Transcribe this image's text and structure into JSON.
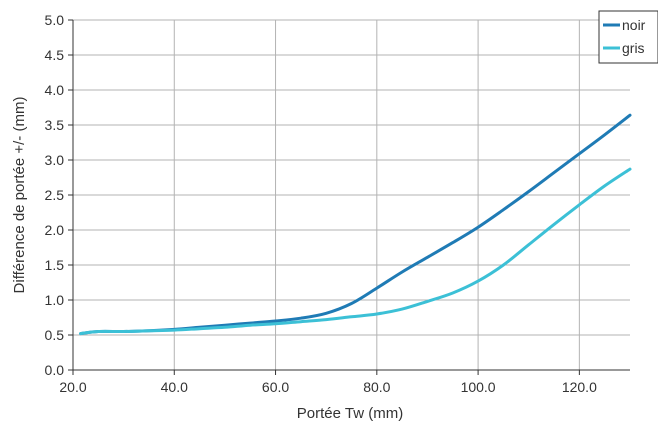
{
  "chart_data": {
    "type": "line",
    "title": "",
    "xlabel": "Portée Tw (mm)",
    "ylabel": "Différence de portée +/- (mm)",
    "xlim": [
      20,
      130
    ],
    "ylim": [
      0,
      5
    ],
    "xticks": [
      20,
      40,
      60,
      80,
      100,
      120
    ],
    "xtick_labels": [
      "20.0",
      "40.0",
      "60.0",
      "80.0",
      "100.0",
      "120.0"
    ],
    "yticks": [
      0,
      0.5,
      1,
      1.5,
      2,
      2.5,
      3,
      3.5,
      4,
      4.5,
      5
    ],
    "ytick_labels": [
      "0.0",
      "0.5",
      "1.0",
      "1.5",
      "2.0",
      "2.5",
      "3.0",
      "3.5",
      "4.0",
      "4.5",
      "5.0"
    ],
    "grid": true,
    "legend_position": "top-right",
    "series": [
      {
        "name": "noir",
        "color": "#1f7bb5",
        "x": [
          21.5,
          25,
          30,
          35,
          40,
          45,
          50,
          55,
          60,
          65,
          70,
          75,
          80,
          85,
          90,
          95,
          100,
          105,
          110,
          115,
          120,
          125,
          130
        ],
        "y": [
          0.52,
          0.55,
          0.55,
          0.56,
          0.58,
          0.61,
          0.64,
          0.67,
          0.7,
          0.74,
          0.81,
          0.95,
          1.17,
          1.4,
          1.61,
          1.82,
          2.04,
          2.29,
          2.55,
          2.82,
          3.09,
          3.36,
          3.64
        ]
      },
      {
        "name": "gris",
        "color": "#3cc0d6",
        "x": [
          21.5,
          25,
          30,
          35,
          40,
          45,
          50,
          55,
          60,
          65,
          70,
          75,
          80,
          85,
          90,
          95,
          100,
          105,
          110,
          115,
          120,
          125,
          130
        ],
        "y": [
          0.52,
          0.55,
          0.55,
          0.56,
          0.57,
          0.59,
          0.61,
          0.64,
          0.66,
          0.69,
          0.72,
          0.76,
          0.8,
          0.87,
          0.98,
          1.1,
          1.27,
          1.5,
          1.79,
          2.08,
          2.36,
          2.63,
          2.87
        ]
      }
    ]
  }
}
